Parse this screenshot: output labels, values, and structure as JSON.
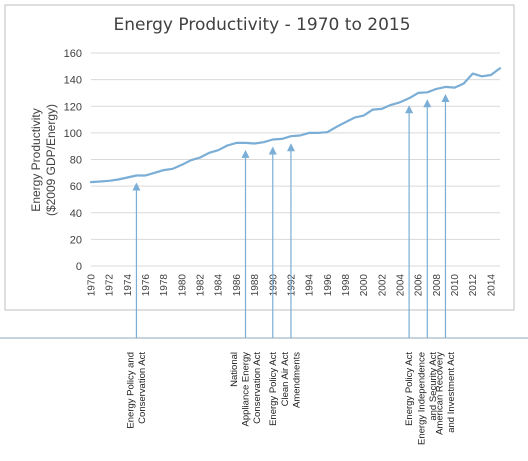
{
  "chart_data": {
    "type": "line",
    "title": "Energy Productivity - 1970 to 2015",
    "ylabel_lines": [
      "Energy Productivity",
      "($2009 GDP/Energy)"
    ],
    "xlabel": "",
    "ylim": [
      0,
      160
    ],
    "yticks": [
      0,
      20,
      40,
      60,
      80,
      100,
      120,
      140,
      160
    ],
    "xlim": [
      1970,
      2015
    ],
    "xticks": [
      1970,
      1972,
      1974,
      1976,
      1978,
      1980,
      1982,
      1984,
      1986,
      1988,
      1990,
      1992,
      1994,
      1996,
      1998,
      2000,
      2002,
      2004,
      2006,
      2008,
      2010,
      2012,
      2014
    ],
    "grid": true,
    "legend": "none",
    "line_color": "#7aaed6",
    "series": [
      {
        "x": [
          1970,
          1971,
          1972,
          1973,
          1974,
          1975,
          1976,
          1977,
          1978,
          1979,
          1980,
          1981,
          1982,
          1983,
          1984,
          1985,
          1986,
          1987,
          1988,
          1989,
          1990,
          1991,
          1992,
          1993,
          1994,
          1995,
          1996,
          1997,
          1998,
          1999,
          2000,
          2001,
          2002,
          2003,
          2004,
          2005,
          2006,
          2007,
          2008,
          2009,
          2010,
          2011,
          2012,
          2013,
          2014,
          2015
        ],
        "values": [
          63,
          63.5,
          64,
          65,
          66.5,
          68,
          68,
          70,
          72,
          73,
          76,
          79.5,
          81.5,
          85,
          87,
          90.5,
          92.5,
          92.5,
          92,
          93,
          95,
          95.5,
          97.5,
          98,
          100,
          100,
          100.5,
          104.5,
          108,
          111.5,
          113,
          117.5,
          118,
          121,
          123,
          126,
          130,
          130.5,
          133,
          134.5,
          134,
          137,
          144.5,
          142.5,
          143.5,
          148.5
        ]
      }
    ],
    "annotations": [
      {
        "year": 1975,
        "lines": [
          "Energy Policy and",
          "Conservation Act"
        ]
      },
      {
        "year": 1987,
        "lines": [
          "National",
          "Appliance Energy",
          "Conservation Act"
        ]
      },
      {
        "year": 1990,
        "lines": [
          "Energy Policy Act"
        ]
      },
      {
        "year": 1992,
        "lines": [
          "Clean Air Act",
          "Amendments"
        ]
      },
      {
        "year": 2005,
        "lines": [
          "Energy Policy Act"
        ]
      },
      {
        "year": 2007,
        "lines": [
          "Energy Independence",
          "and Security Act"
        ]
      },
      {
        "year": 2009,
        "lines": [
          "American Recovery",
          "and Investment Act"
        ]
      }
    ],
    "colors": {
      "gridline": "#d9d9d9",
      "frame": "#bfbfbf",
      "divider": "#8faabb",
      "arrow": "#7aaed6"
    }
  }
}
